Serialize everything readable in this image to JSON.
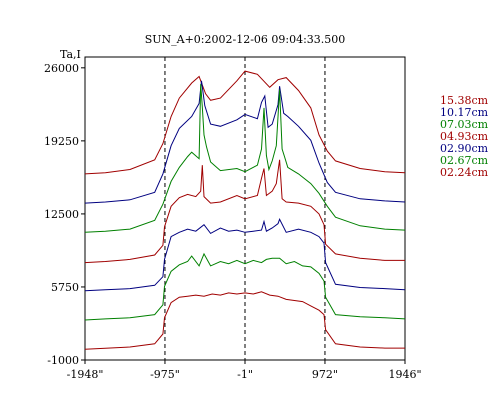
{
  "chart_data": {
    "type": "line",
    "title": "SUN_A+0:2002-12-06 09:04:33.500",
    "ylabel": "Ta,I",
    "xlim": [
      -1948,
      1946
    ],
    "ylim": [
      -1000,
      27000
    ],
    "x_ticks": [
      "-1948\"",
      "-975\"",
      "-1\"",
      "972\"",
      "1946\""
    ],
    "x_tick_values": [
      -1948,
      -975,
      -1,
      972,
      1946
    ],
    "y_ticks": [
      "26000",
      "19250",
      "12500",
      "5750",
      "-1000"
    ],
    "y_tick_values": [
      26000,
      19250,
      12500,
      5750,
      -1000
    ],
    "dashed_verticals": [
      -975,
      -1,
      972
    ],
    "grid": false,
    "legend_position": "right",
    "colors": {
      "red": "#a00000",
      "blue": "#000080",
      "green": "#008000"
    },
    "series": [
      {
        "name": "15.38cm",
        "color": "#a00000",
        "baseline": 16200,
        "x": [
          -1948,
          -1700,
          -1400,
          -1100,
          -1000,
          -900,
          -800,
          -650,
          -560,
          -480,
          -420,
          -300,
          -100,
          -1,
          150,
          300,
          400,
          500,
          650,
          800,
          900,
          1000,
          1100,
          1400,
          1700,
          1946
        ],
        "y": [
          16200,
          16300,
          16600,
          17500,
          19000,
          21500,
          23200,
          24600,
          25200,
          23600,
          23000,
          23200,
          24800,
          25700,
          25400,
          24200,
          24900,
          25100,
          23900,
          22300,
          19800,
          18300,
          17400,
          16700,
          16400,
          16300
        ]
      },
      {
        "name": "10.17cm",
        "color": "#000080",
        "baseline": 13500,
        "x": [
          -1948,
          -1700,
          -1400,
          -1100,
          -1000,
          -900,
          -800,
          -650,
          -560,
          -530,
          -490,
          -420,
          -300,
          -100,
          -1,
          150,
          200,
          240,
          280,
          330,
          400,
          420,
          470,
          520,
          650,
          800,
          900,
          1000,
          1100,
          1400,
          1700,
          1946
        ],
        "y": [
          13500,
          13600,
          13800,
          14500,
          16200,
          18800,
          20400,
          21500,
          22700,
          24800,
          22500,
          20800,
          20600,
          21200,
          21700,
          21300,
          22800,
          23400,
          20500,
          20800,
          22600,
          24300,
          21800,
          21500,
          20600,
          19300,
          17200,
          15400,
          14500,
          13900,
          13700,
          13600
        ]
      },
      {
        "name": "07.03cm",
        "color": "#008000",
        "baseline": 10800,
        "x": [
          -1948,
          -1700,
          -1400,
          -1100,
          -1000,
          -900,
          -800,
          -700,
          -650,
          -560,
          -540,
          -520,
          -500,
          -470,
          -420,
          -300,
          -100,
          -1,
          150,
          200,
          230,
          260,
          290,
          330,
          380,
          420,
          450,
          480,
          520,
          650,
          800,
          900,
          1000,
          1100,
          1400,
          1700,
          1946
        ],
        "y": [
          10800,
          10900,
          11100,
          11900,
          13400,
          15500,
          16800,
          17800,
          18200,
          17600,
          24500,
          22400,
          19800,
          18700,
          17300,
          16500,
          16700,
          16400,
          17000,
          18500,
          22300,
          17900,
          16600,
          17400,
          18800,
          24000,
          18500,
          17800,
          16800,
          16200,
          15300,
          14400,
          13200,
          12200,
          11400,
          11100,
          11000
        ]
      },
      {
        "name": "04.93cm",
        "color": "#a00000",
        "baseline": 8000,
        "x": [
          -1948,
          -1700,
          -1400,
          -1100,
          -1000,
          -980,
          -900,
          -800,
          -700,
          -600,
          -540,
          -520,
          -500,
          -420,
          -300,
          -100,
          -1,
          150,
          200,
          230,
          260,
          330,
          380,
          420,
          450,
          500,
          650,
          800,
          900,
          960,
          980,
          1100,
          1400,
          1700,
          1946
        ],
        "y": [
          8000,
          8100,
          8300,
          8700,
          9600,
          11300,
          13200,
          14000,
          14300,
          14100,
          14600,
          17000,
          14100,
          13500,
          13600,
          14200,
          13900,
          14200,
          15800,
          16700,
          14200,
          14600,
          15300,
          17500,
          13900,
          13600,
          13500,
          13200,
          12500,
          11500,
          9700,
          8800,
          8400,
          8200,
          8200
        ]
      },
      {
        "name": "02.90cm",
        "color": "#000080",
        "baseline": 5400,
        "x": [
          -1948,
          -1700,
          -1400,
          -1100,
          -1000,
          -980,
          -900,
          -800,
          -700,
          -600,
          -500,
          -420,
          -300,
          -200,
          -100,
          -1,
          100,
          200,
          230,
          260,
          330,
          400,
          420,
          500,
          650,
          800,
          900,
          960,
          980,
          1100,
          1400,
          1700,
          1946
        ],
        "y": [
          5400,
          5500,
          5600,
          5900,
          6700,
          8300,
          10400,
          10800,
          11100,
          10900,
          11500,
          10700,
          11200,
          10900,
          11000,
          10800,
          10900,
          11000,
          11800,
          10900,
          11200,
          11600,
          12000,
          10800,
          11100,
          10800,
          10400,
          9800,
          8000,
          6000,
          5700,
          5600,
          5500
        ]
      },
      {
        "name": "02.67cm",
        "color": "#008000",
        "baseline": 2700,
        "x": [
          -1948,
          -1700,
          -1400,
          -1100,
          -1000,
          -980,
          -900,
          -800,
          -700,
          -650,
          -560,
          -500,
          -420,
          -300,
          -200,
          -100,
          -1,
          100,
          200,
          260,
          330,
          420,
          500,
          600,
          700,
          800,
          900,
          960,
          980,
          1100,
          1400,
          1700,
          1946
        ],
        "y": [
          2700,
          2800,
          2900,
          3200,
          4100,
          5800,
          7200,
          7800,
          8100,
          8600,
          7700,
          8800,
          7700,
          8100,
          7900,
          8200,
          7900,
          8200,
          8000,
          8300,
          8400,
          8400,
          7900,
          8100,
          7700,
          7600,
          7000,
          6300,
          4800,
          3200,
          3000,
          2900,
          2800
        ]
      },
      {
        "name": "02.24cm",
        "color": "#a00000",
        "baseline": 0,
        "x": [
          -1948,
          -1700,
          -1400,
          -1100,
          -1000,
          -980,
          -900,
          -800,
          -700,
          -600,
          -500,
          -400,
          -300,
          -200,
          -100,
          -1,
          100,
          200,
          300,
          400,
          500,
          600,
          700,
          800,
          900,
          960,
          980,
          1100,
          1400,
          1700,
          1946
        ],
        "y": [
          0,
          80,
          200,
          500,
          1400,
          2900,
          4300,
          4800,
          4900,
          5000,
          4900,
          5100,
          5000,
          5200,
          5100,
          5200,
          5100,
          5300,
          5000,
          4900,
          4600,
          4500,
          4400,
          4000,
          3600,
          3200,
          1800,
          500,
          200,
          100,
          100
        ]
      }
    ]
  }
}
